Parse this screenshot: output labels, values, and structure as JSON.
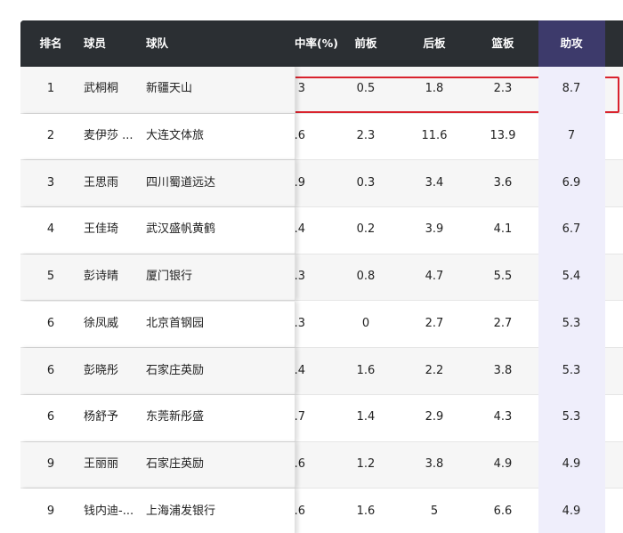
{
  "table": {
    "header": [
      "排名",
      "球员",
      "球队",
      "中率(%)",
      "前板",
      "后板",
      "篮板",
      "助攻"
    ],
    "rows": [
      [
        "1",
        "武桐桐",
        "新疆天山",
        "3",
        "0.5",
        "1.8",
        "2.3",
        "8.7"
      ],
      [
        "2",
        "麦伊莎 ...",
        "大连文体旅",
        ".6",
        "2.3",
        "11.6",
        "13.9",
        "7"
      ],
      [
        "3",
        "王思雨",
        "四川蜀道远达",
        ".9",
        "0.3",
        "3.4",
        "3.6",
        "6.9"
      ],
      [
        "4",
        "王佳琦",
        "武汉盛帆黄鹤",
        ".4",
        "0.2",
        "3.9",
        "4.1",
        "6.7"
      ],
      [
        "5",
        "彭诗晴",
        "厦门银行",
        ".3",
        "0.8",
        "4.7",
        "5.5",
        "5.4"
      ],
      [
        "6",
        "徐凤威",
        "北京首钢园",
        ".3",
        "0",
        "2.7",
        "2.7",
        "5.3"
      ],
      [
        "6",
        "彭晓彤",
        "石家庄英励",
        ".4",
        "1.6",
        "2.2",
        "3.8",
        "5.3"
      ],
      [
        "6",
        "杨舒予",
        "东莞新彤盛",
        ".7",
        "1.4",
        "2.9",
        "4.3",
        "5.3"
      ],
      [
        "9",
        "王丽丽",
        "石家庄英励",
        ".6",
        "1.2",
        "3.8",
        "4.9",
        "4.9"
      ],
      [
        "9",
        "钱内迪-...",
        "上海浦发银行",
        ".6",
        "1.6",
        "5",
        "6.6",
        "4.9"
      ]
    ]
  }
}
